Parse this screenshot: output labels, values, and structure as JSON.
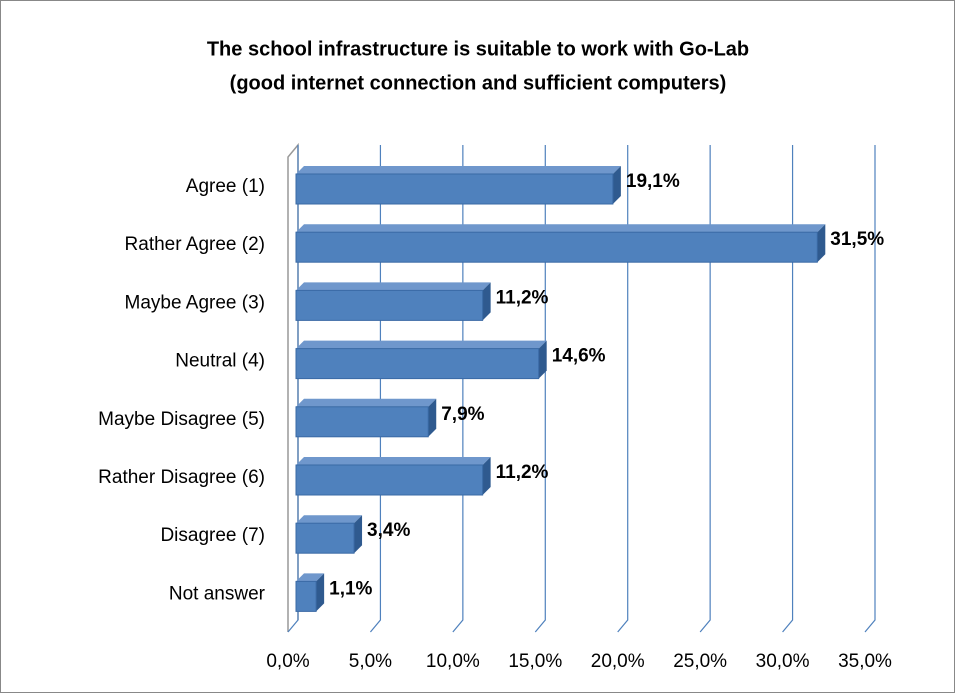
{
  "chart_data": {
    "type": "bar",
    "orientation": "horizontal",
    "title": [
      "The school infrastructure is suitable to work with Go-Lab",
      "(good internet connection and sufficient computers)"
    ],
    "categories": [
      "Agree (1)",
      "Rather Agree (2)",
      "Maybe Agree (3)",
      "Neutral (4)",
      "Maybe Disagree (5)",
      "Rather Disagree (6)",
      "Disagree (7)",
      "Not answer"
    ],
    "values": [
      19.1,
      31.5,
      11.2,
      14.6,
      7.9,
      11.2,
      3.4,
      1.1
    ],
    "value_labels": [
      "19,1%",
      "31,5%",
      "11,2%",
      "14,6%",
      "7,9%",
      "11,2%",
      "3,4%",
      "1,1%"
    ],
    "color": "#4f81bd",
    "xlim": [
      0,
      35
    ],
    "xticks": [
      {
        "value": 0,
        "label": "0,0%"
      },
      {
        "value": 5,
        "label": "5,0%"
      },
      {
        "value": 10,
        "label": "10,0%"
      },
      {
        "value": 15,
        "label": "15,0%"
      },
      {
        "value": 20,
        "label": "20,0%"
      },
      {
        "value": 25,
        "label": "25,0%"
      },
      {
        "value": 30,
        "label": "30,0%"
      },
      {
        "value": 35,
        "label": "35,0%"
      }
    ],
    "grid": true
  }
}
